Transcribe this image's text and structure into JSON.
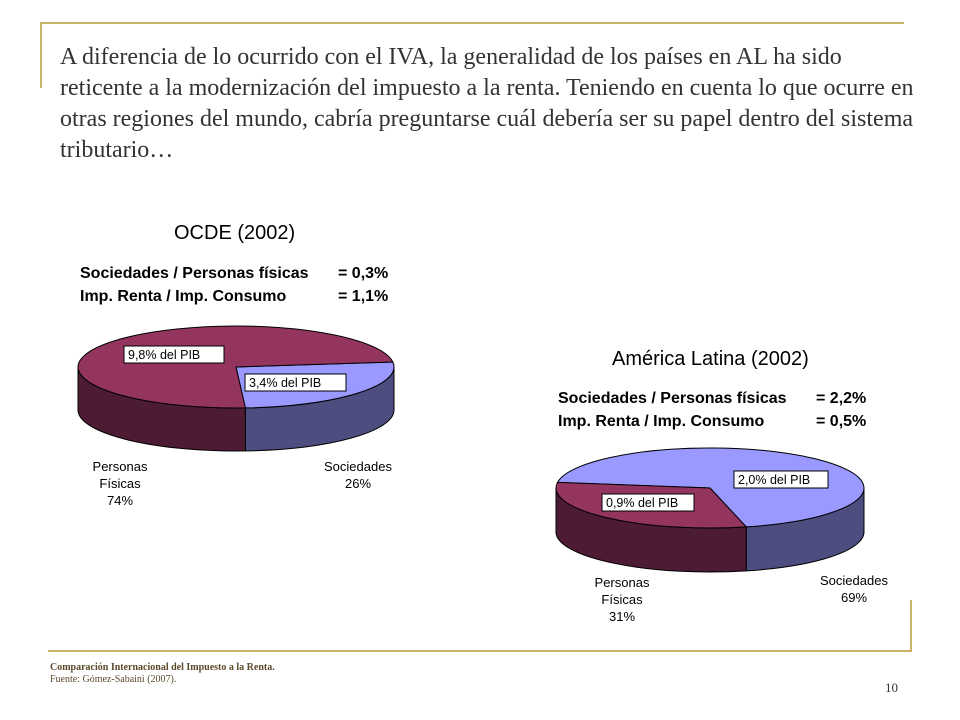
{
  "slide": {
    "title": "A diferencia de lo ocurrido con el IVA, la generalidad de los países en AL ha sido reticente a la modernización del impuesto a la renta. Teniendo en cuenta lo que ocurre en otras regiones del mundo, cabría preguntarse cuál debería ser su papel dentro del sistema tributario…",
    "footer_line1": "Comparación Internacional del Impuesto a la Renta.",
    "footer_line2": "Fuente: Gómez-Sabaini (2007).",
    "page_number": "10"
  },
  "colors": {
    "accent_gold": "#c9b36b",
    "personas_fisicas": "#943560",
    "personas_fisicas_side": "#4d1b33",
    "sociedades": "#9999ff",
    "sociedades_side": "#4d4d80"
  },
  "chart_data": [
    {
      "type": "pie",
      "title": "OCDE (2002)",
      "stats": [
        {
          "label": "Sociedades / Personas físicas",
          "value": "= 0,3%"
        },
        {
          "label": "Imp. Renta / Imp. Consumo",
          "value": "= 1,1%"
        }
      ],
      "slices": [
        {
          "name": "Personas Físicas",
          "name_lines": [
            "Personas",
            "Físicas"
          ],
          "percent": 74,
          "percent_label": "74%",
          "pib_label": "9,8% del PIB"
        },
        {
          "name": "Sociedades",
          "name_lines": [
            "Sociedades"
          ],
          "percent": 26,
          "percent_label": "26%",
          "pib_label": "3,4% del PIB"
        }
      ]
    },
    {
      "type": "pie",
      "title": "América Latina (2002)",
      "stats": [
        {
          "label": "Sociedades / Personas físicas",
          "value": "= 2,2%"
        },
        {
          "label": "Imp. Renta / Imp. Consumo",
          "value": "= 0,5%"
        }
      ],
      "slices": [
        {
          "name": "Personas Físicas",
          "name_lines": [
            "Personas",
            "Físicas"
          ],
          "percent": 31,
          "percent_label": "31%",
          "pib_label": "0,9% del PIB"
        },
        {
          "name": "Sociedades",
          "name_lines": [
            "Sociedades"
          ],
          "percent": 69,
          "percent_label": "69%",
          "pib_label": "2,0% del PIB"
        }
      ]
    }
  ]
}
